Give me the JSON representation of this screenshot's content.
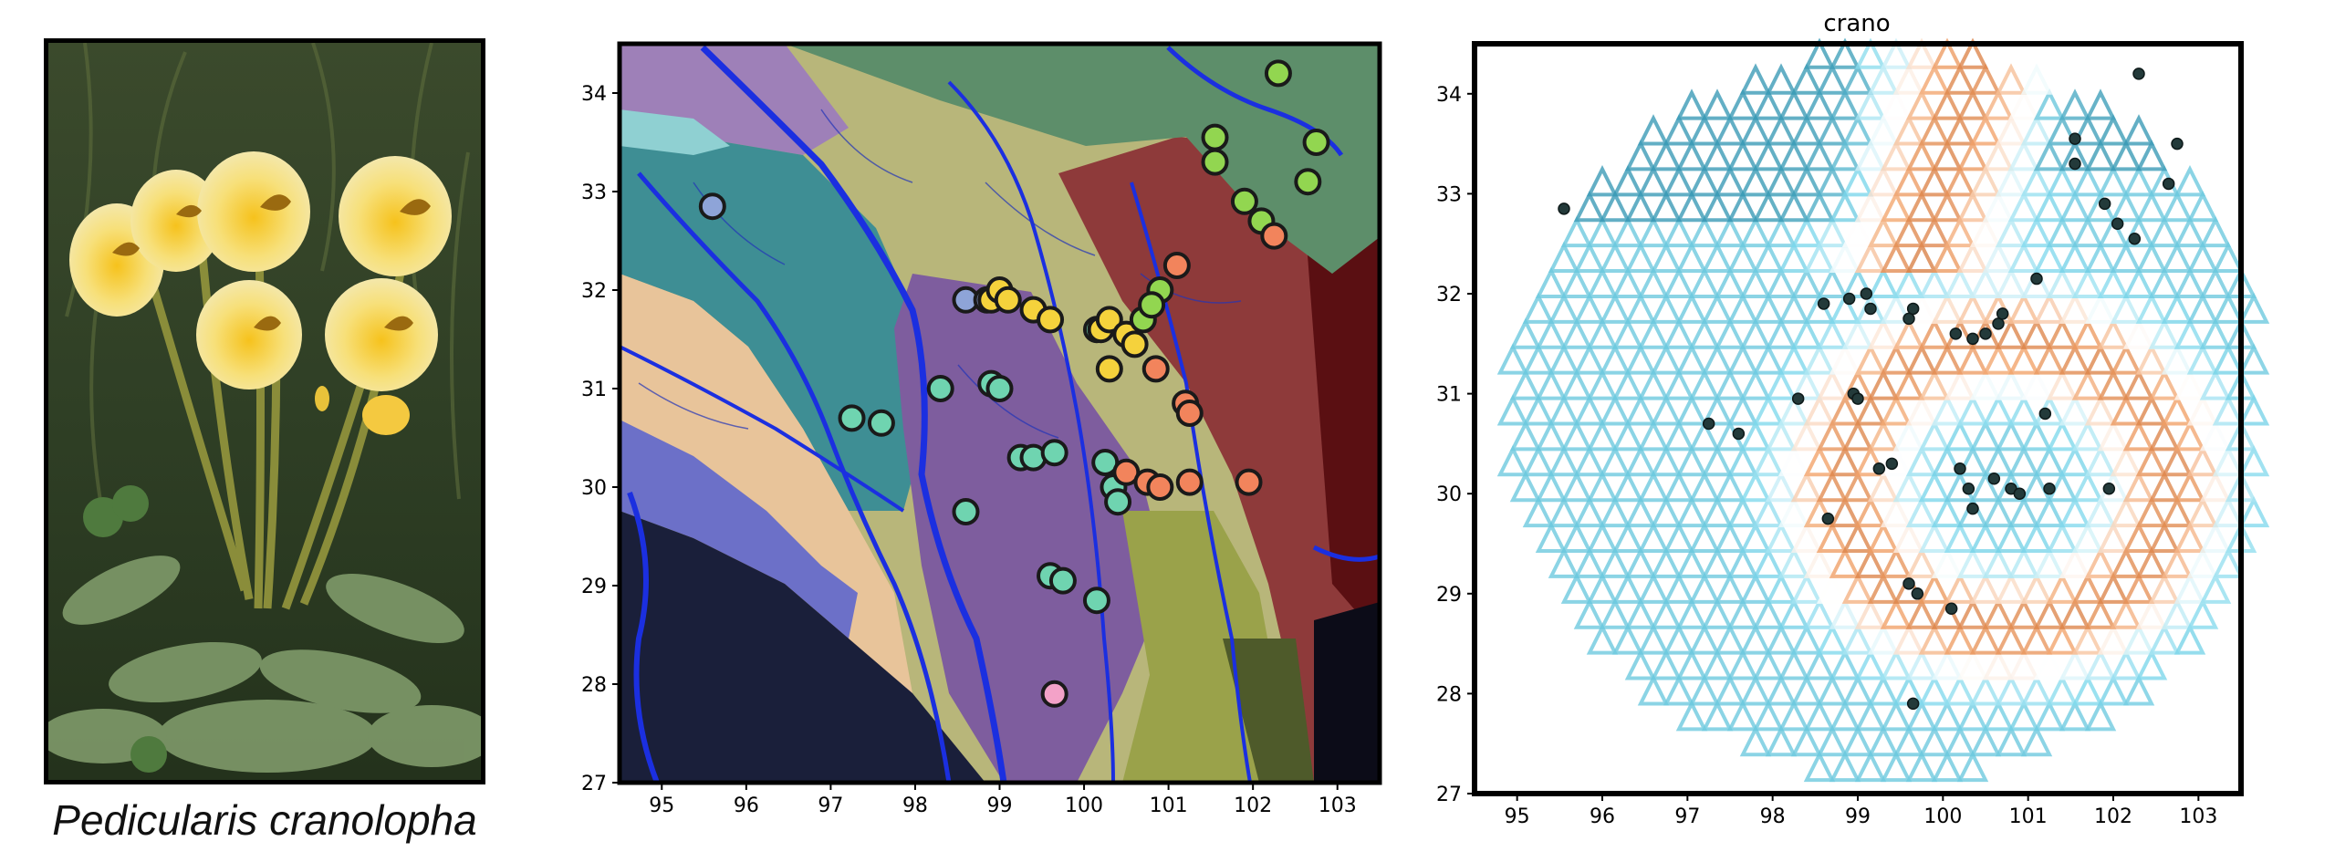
{
  "figure": {
    "caption": "Pedicularis cranolopha",
    "photo_subject": "yellow-flower-photo"
  },
  "chart_data": [
    {
      "type": "scatter",
      "panel": "drainage-map",
      "title": "",
      "xlabel": "",
      "ylabel": "",
      "xlim": [
        94.5,
        103.5
      ],
      "ylim": [
        27,
        34.5
      ],
      "xticks": [
        "95",
        "96",
        "97",
        "98",
        "99",
        "100",
        "101",
        "102",
        "103"
      ],
      "yticks": [
        "27",
        "28",
        "29",
        "30",
        "31",
        "32",
        "33",
        "34"
      ],
      "series": [
        {
          "color": "#8ea4d8",
          "points": [
            [
              95.6,
              32.85
            ],
            [
              98.6,
              31.9
            ],
            [
              98.85,
              31.9
            ]
          ]
        },
        {
          "color": "#6fd4b0",
          "points": [
            [
              97.25,
              30.7
            ],
            [
              97.6,
              30.65
            ],
            [
              98.3,
              31.0
            ],
            [
              98.6,
              29.75
            ],
            [
              98.9,
              31.05
            ],
            [
              99.0,
              31.0
            ],
            [
              99.25,
              30.3
            ],
            [
              99.4,
              30.3
            ],
            [
              99.65,
              30.35
            ],
            [
              99.6,
              29.1
            ],
            [
              99.75,
              29.05
            ],
            [
              100.15,
              28.85
            ],
            [
              100.25,
              30.25
            ],
            [
              100.35,
              30.0
            ],
            [
              100.4,
              29.85
            ],
            [
              100.15,
              31.6
            ]
          ]
        },
        {
          "color": "#f5d23c",
          "points": [
            [
              98.9,
              31.9
            ],
            [
              99.0,
              32.0
            ],
            [
              99.1,
              31.9
            ],
            [
              99.4,
              31.8
            ],
            [
              99.6,
              31.7
            ],
            [
              100.2,
              31.6
            ],
            [
              100.3,
              31.7
            ],
            [
              100.5,
              31.55
            ],
            [
              100.6,
              31.45
            ],
            [
              100.3,
              31.2
            ]
          ]
        },
        {
          "color": "#92d650",
          "points": [
            [
              102.3,
              34.2
            ],
            [
              101.55,
              33.55
            ],
            [
              101.55,
              33.3
            ],
            [
              102.75,
              33.5
            ],
            [
              102.65,
              33.1
            ],
            [
              101.9,
              32.9
            ],
            [
              102.1,
              32.7
            ],
            [
              100.9,
              32.0
            ],
            [
              100.7,
              31.7
            ],
            [
              100.8,
              31.85
            ]
          ]
        },
        {
          "color": "#f2845c",
          "points": [
            [
              102.25,
              32.55
            ],
            [
              101.1,
              32.25
            ],
            [
              100.85,
              31.2
            ],
            [
              101.2,
              30.85
            ],
            [
              101.25,
              30.75
            ],
            [
              100.5,
              30.15
            ],
            [
              100.75,
              30.05
            ],
            [
              100.9,
              30.0
            ],
            [
              101.25,
              30.05
            ],
            [
              101.95,
              30.05
            ]
          ]
        },
        {
          "color": "#f3a2c8",
          "points": [
            [
              99.65,
              27.9
            ]
          ]
        }
      ]
    },
    {
      "type": "heatmap",
      "panel": "triangular-grid",
      "title": "crano",
      "xlabel": "",
      "ylabel": "",
      "xlim": [
        94.5,
        103.5
      ],
      "ylim": [
        27,
        34.5
      ],
      "xticks": [
        "95",
        "96",
        "97",
        "98",
        "99",
        "100",
        "101",
        "102",
        "103"
      ],
      "yticks": [
        "27",
        "28",
        "29",
        "30",
        "31",
        "32",
        "33",
        "34"
      ],
      "colormap": [
        "#2b8ca8",
        "#7fd8ec",
        "#ffffff",
        "#f2a46c",
        "#c86a30"
      ],
      "samples": [
        [
          95.55,
          32.85
        ],
        [
          97.25,
          30.7
        ],
        [
          97.6,
          30.6
        ],
        [
          98.3,
          30.95
        ],
        [
          98.6,
          31.9
        ],
        [
          98.65,
          29.75
        ],
        [
          98.9,
          31.95
        ],
        [
          98.95,
          31.0
        ],
        [
          99.0,
          30.95
        ],
        [
          99.1,
          32.0
        ],
        [
          99.15,
          31.85
        ],
        [
          99.25,
          30.25
        ],
        [
          99.4,
          30.3
        ],
        [
          99.6,
          31.75
        ],
        [
          99.65,
          31.85
        ],
        [
          99.6,
          29.1
        ],
        [
          99.7,
          29.0
        ],
        [
          99.65,
          27.9
        ],
        [
          100.1,
          28.85
        ],
        [
          100.15,
          31.6
        ],
        [
          100.2,
          30.25
        ],
        [
          100.3,
          30.05
        ],
        [
          100.35,
          29.85
        ],
        [
          100.35,
          31.55
        ],
        [
          100.5,
          31.6
        ],
        [
          100.6,
          30.15
        ],
        [
          100.65,
          31.7
        ],
        [
          100.7,
          31.8
        ],
        [
          100.8,
          30.05
        ],
        [
          100.9,
          30.0
        ],
        [
          101.1,
          32.15
        ],
        [
          101.25,
          30.05
        ],
        [
          101.55,
          33.55
        ],
        [
          101.55,
          33.3
        ],
        [
          101.9,
          32.9
        ],
        [
          102.05,
          32.7
        ],
        [
          102.3,
          34.2
        ],
        [
          102.65,
          33.1
        ],
        [
          102.75,
          33.5
        ],
        [
          102.25,
          32.55
        ],
        [
          101.2,
          30.8
        ],
        [
          101.95,
          30.05
        ]
      ]
    }
  ]
}
